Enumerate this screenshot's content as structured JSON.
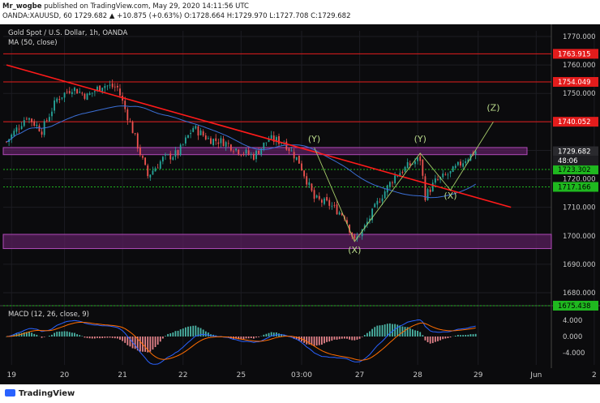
{
  "header": {
    "publisher": "Mr_wogbe",
    "published_text": " published on TradingView.com, May 29, 2020 14:11:56 UTC",
    "ohlc_line": "OANDA:XAUUSD, 60  1729.682 ▲ +10.875 (+0.63%) O:1728.664 H:1729.970 L:1727.708 C:1729.682"
  },
  "legend": {
    "symbol_title": "Gold Spot / U.S. Dollar, 1h, OANDA",
    "ma_label": "MA (50, close)"
  },
  "price_labels": {
    "current": "1729.682",
    "countdown": "48:06"
  },
  "macd_label": "MACD (12, 26, close, 9)",
  "footer": {
    "brand": "TradingView"
  },
  "colors": {
    "up_candle": "#26a69a",
    "down_candle": "#ef5350",
    "trendline": "#ff1a1a",
    "ma_line": "#3b6fd6",
    "zone_fill": "#5a1f5e",
    "level_red": "#e31c1c",
    "level_green": "#1fb81f",
    "wave_lines": "#a6cc6a",
    "macd_line": "#2962ff",
    "signal_line": "#ff6d00"
  },
  "chart_data": {
    "type": "candlestick",
    "title": "Gold Spot / U.S. Dollar, 1h, OANDA",
    "x_tick_labels": [
      "19",
      "20",
      "21",
      "22",
      "25",
      "03:00",
      "27",
      "28",
      "29",
      "Jun",
      "2"
    ],
    "price_axis_ticks": [
      1680.0,
      1690.0,
      1700.0,
      1710.0,
      1720.0,
      1730.0,
      1740.0,
      1750.0,
      1760.0,
      1770.0
    ],
    "ylim": [
      1676,
      1772
    ],
    "red_levels": [
      {
        "value": 1763.915,
        "label": "1763.915"
      },
      {
        "value": 1754.049,
        "label": "1754.049"
      },
      {
        "value": 1740.052,
        "label": "1740.052"
      }
    ],
    "green_levels": [
      {
        "value": 1723.302,
        "label": "1723.302"
      },
      {
        "value": 1717.166,
        "label": "1717.166"
      },
      {
        "value": 1675.438,
        "label": "1675.438"
      }
    ],
    "zones": [
      [
        1728.5,
        1731
      ],
      [
        1695.5,
        1700.5
      ]
    ],
    "close_path": [
      [
        0,
        1733
      ],
      [
        8,
        1742
      ],
      [
        14,
        1737
      ],
      [
        20,
        1748
      ],
      [
        26,
        1752
      ],
      [
        32,
        1749
      ],
      [
        38,
        1753
      ],
      [
        44,
        1752
      ],
      [
        50,
        1737
      ],
      [
        56,
        1721
      ],
      [
        62,
        1727
      ],
      [
        68,
        1729
      ],
      [
        74,
        1738
      ],
      [
        80,
        1734
      ],
      [
        86,
        1733
      ],
      [
        92,
        1730
      ],
      [
        98,
        1728
      ],
      [
        104,
        1734
      ],
      [
        110,
        1733
      ],
      [
        116,
        1726
      ],
      [
        122,
        1713
      ],
      [
        128,
        1711
      ],
      [
        134,
        1707
      ],
      [
        138,
        1698
      ],
      [
        142,
        1703
      ],
      [
        148,
        1713
      ],
      [
        154,
        1721
      ],
      [
        160,
        1725
      ],
      [
        164,
        1727
      ],
      [
        166,
        1714
      ],
      [
        170,
        1719
      ],
      [
        176,
        1722
      ],
      [
        182,
        1727
      ],
      [
        186,
        1729.7
      ]
    ],
    "trendline": [
      [
        0,
        1760
      ],
      [
        200,
        1710
      ]
    ],
    "wave_labels": [
      {
        "text": "(Y)",
        "x": 122,
        "y": 1733
      },
      {
        "text": "(X)",
        "x": 138,
        "y": 1694
      },
      {
        "text": "(Y)",
        "x": 164,
        "y": 1733
      },
      {
        "text": "(X)",
        "x": 176,
        "y": 1713
      },
      {
        "text": "(Z)",
        "x": 193,
        "y": 1744
      }
    ],
    "macd": {
      "label": "MACD (12, 26, close, 9)",
      "ticks": [
        4.0,
        0.0,
        -4.0
      ],
      "tick_labels": [
        "4.000",
        "0.000",
        "-4.000"
      ],
      "ylim": [
        -7,
        7
      ]
    }
  }
}
